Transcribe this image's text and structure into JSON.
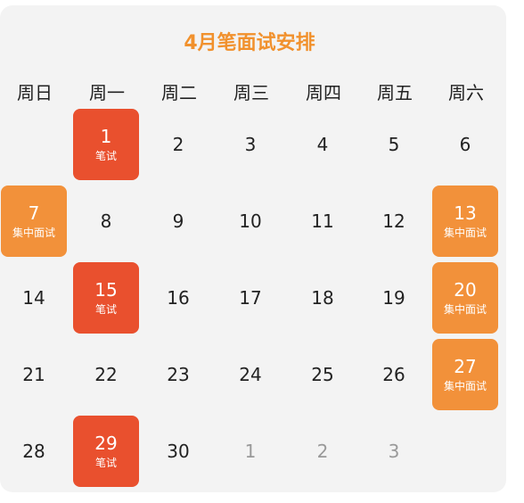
{
  "title": "4月笔面试安排",
  "weekdays": [
    "周日",
    "周一",
    "周二",
    "周三",
    "周四",
    "周五",
    "周六"
  ],
  "colors": {
    "written": "#e9502e",
    "group": "#f2913a",
    "title": "#f1912d"
  },
  "weeks": [
    [
      {
        "day": ""
      },
      {
        "day": "1",
        "label": "笔试",
        "type": "written"
      },
      {
        "day": "2"
      },
      {
        "day": "3"
      },
      {
        "day": "4"
      },
      {
        "day": "5"
      },
      {
        "day": "6"
      }
    ],
    [
      {
        "day": "7",
        "label": "集中面试",
        "type": "group"
      },
      {
        "day": "8"
      },
      {
        "day": "9"
      },
      {
        "day": "10"
      },
      {
        "day": "11"
      },
      {
        "day": "12"
      },
      {
        "day": "13",
        "label": "集中面试",
        "type": "group"
      }
    ],
    [
      {
        "day": "14"
      },
      {
        "day": "15",
        "label": "笔试",
        "type": "written"
      },
      {
        "day": "16"
      },
      {
        "day": "17"
      },
      {
        "day": "18"
      },
      {
        "day": "19"
      },
      {
        "day": "20",
        "label": "集中面试",
        "type": "group"
      }
    ],
    [
      {
        "day": "21"
      },
      {
        "day": "22"
      },
      {
        "day": "23"
      },
      {
        "day": "24"
      },
      {
        "day": "25"
      },
      {
        "day": "26"
      },
      {
        "day": "27",
        "label": "集中面试",
        "type": "group"
      }
    ],
    [
      {
        "day": "28"
      },
      {
        "day": "29",
        "label": "笔试",
        "type": "written"
      },
      {
        "day": "30"
      },
      {
        "day": "1",
        "muted": true
      },
      {
        "day": "2",
        "muted": true
      },
      {
        "day": "3",
        "muted": true
      },
      {
        "day": ""
      }
    ]
  ]
}
